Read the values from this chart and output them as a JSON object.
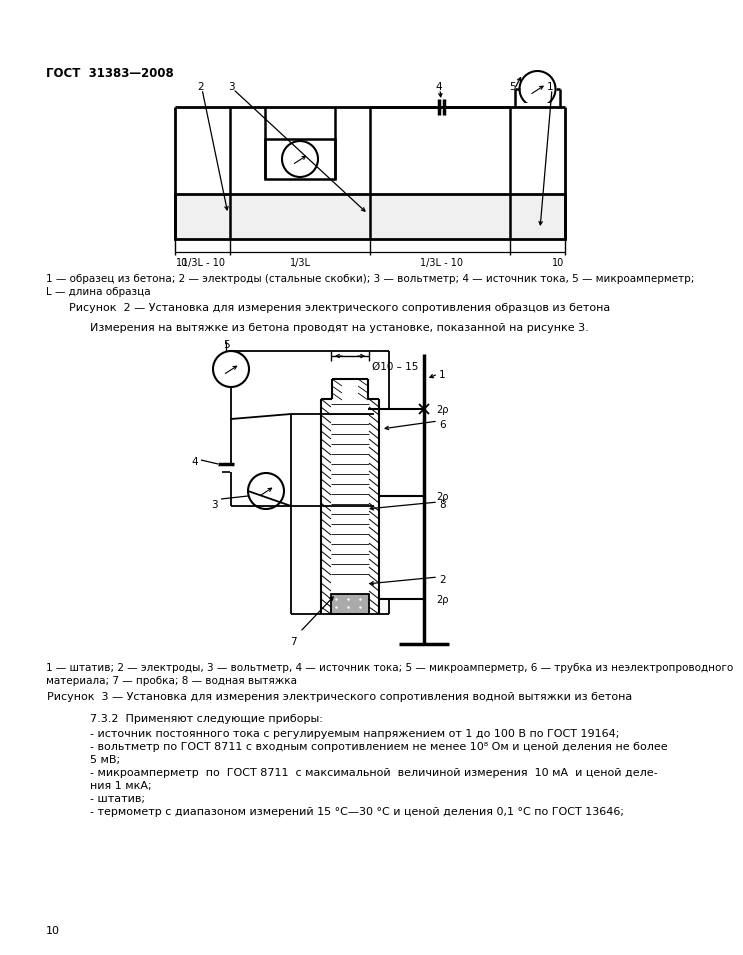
{
  "title_header": "ГОСТ  31383—2008",
  "page_number": "10",
  "fig2_caption_line1": "1 — образец из бетона; 2 — электроды (стальные скобки); 3 — вольтметр; 4 — источник тока, 5 — микроамперметр;",
  "fig2_caption_line2": "L — длина образца",
  "fig2_title": "Рисунок  2 — Установка для измерения электрического сопротивления образцов из бетона",
  "fig3_intro": "Измерения на вытяжке из бетона проводят на установке, показанной на рисунке 3.",
  "fig3_caption_line1": "1 — штатив; 2 — электроды, 3 — вольтметр, 4 — источник тока; 5 — микроамперметр, 6 — трубка из неэлектропроводного",
  "fig3_caption_line2": "материала; 7 — пробка; 8 — водная вытяжка",
  "fig3_title": "Рисунок  3 — Установка для измерения электрического сопротивления водной вытяжки из бетона",
  "section_732_title": "7.3.2  Применяют следующие приборы:",
  "section_732_items": [
    "- источник постоянного тока с регулируемым напряжением от 1 до 100 В по ГОСТ 19164;",
    "- вольтметр по ГОСТ 8711 с входным сопротивлением не менее 10⁸ Ом и ценой деления не более\n5 мВ;",
    "- микроамперметр  по  ГОСТ 8711  с максимальной  величиной измерения  10 мА  и ценой деле-\nния 1 мкА;",
    "- штатив;",
    "- термометр с диапазоном измерений 15 °C—30 °C и ценой деления 0,1 °C по ГОСТ 13646;"
  ],
  "background_color": "#ffffff",
  "line_color": "#000000"
}
